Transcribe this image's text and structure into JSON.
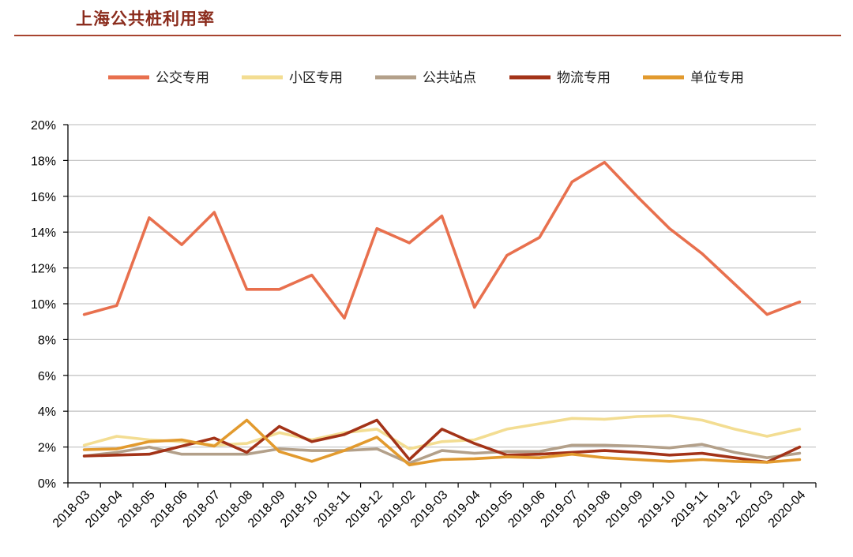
{
  "header": {
    "title": "上海公共桩利用率"
  },
  "chart_data": {
    "type": "line",
    "title": "",
    "xlabel": "",
    "ylabel": "",
    "ylim": [
      0,
      20
    ],
    "grid": true,
    "legend_position": "top",
    "y_ticks": [
      "0%",
      "2%",
      "4%",
      "6%",
      "8%",
      "10%",
      "12%",
      "14%",
      "16%",
      "18%",
      "20%"
    ],
    "categories": [
      "2018-03",
      "2018-04",
      "2018-05",
      "2018-06",
      "2018-07",
      "2018-08",
      "2018-09",
      "2018-10",
      "2018-11",
      "2018-12",
      "2019-02",
      "2019-03",
      "2019-04",
      "2019-05",
      "2019-06",
      "2019-07",
      "2019-08",
      "2019-09",
      "2019-10",
      "2019-11",
      "2019-12",
      "2020-03",
      "2020-04"
    ],
    "series": [
      {
        "name": "公交专用",
        "color": "#e8704e",
        "values": [
          9.4,
          9.9,
          14.8,
          13.3,
          15.1,
          10.8,
          10.8,
          11.6,
          9.2,
          14.2,
          13.4,
          14.9,
          9.8,
          12.7,
          13.7,
          16.8,
          17.9,
          16.0,
          14.2,
          12.8,
          11.1,
          9.4,
          10.1
        ]
      },
      {
        "name": "小区专用",
        "color": "#f3dd92",
        "values": [
          2.1,
          2.6,
          2.4,
          2.3,
          2.1,
          2.2,
          2.8,
          2.4,
          2.8,
          3.0,
          1.9,
          2.3,
          2.4,
          3.0,
          3.3,
          3.6,
          3.55,
          3.7,
          3.75,
          3.5,
          3.0,
          2.6,
          3.0
        ]
      },
      {
        "name": "公共站点",
        "color": "#b3a08a",
        "values": [
          1.5,
          1.7,
          2.0,
          1.6,
          1.6,
          1.6,
          1.9,
          1.8,
          1.8,
          1.9,
          1.1,
          1.8,
          1.65,
          1.75,
          1.75,
          2.1,
          2.1,
          2.05,
          1.95,
          2.15,
          1.7,
          1.4,
          1.65
        ]
      },
      {
        "name": "物流专用",
        "color": "#a33318",
        "values": [
          1.5,
          1.55,
          1.6,
          2.05,
          2.5,
          1.7,
          3.15,
          2.3,
          2.7,
          3.5,
          1.3,
          3.0,
          2.2,
          1.55,
          1.6,
          1.7,
          1.8,
          1.7,
          1.55,
          1.65,
          1.4,
          1.15,
          2.0
        ]
      },
      {
        "name": "单位专用",
        "color": "#e29a2e",
        "values": [
          1.85,
          1.9,
          2.3,
          2.4,
          2.05,
          3.5,
          1.75,
          1.2,
          1.8,
          2.55,
          1.0,
          1.3,
          1.35,
          1.45,
          1.4,
          1.6,
          1.4,
          1.3,
          1.2,
          1.3,
          1.2,
          1.15,
          1.3
        ]
      }
    ]
  }
}
